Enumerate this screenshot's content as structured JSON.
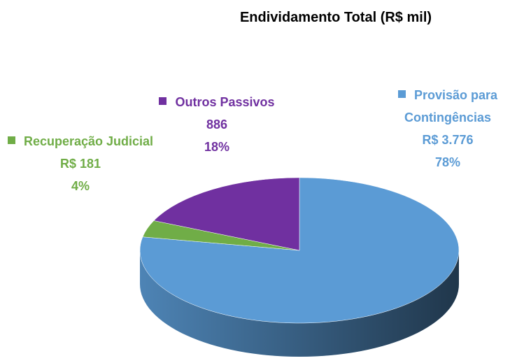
{
  "chart_data": {
    "type": "pie3d",
    "title": "Endividamento Total (R$ mil)",
    "categories": [
      "Provisão para Contingências",
      "Recuperação Judicial",
      "Outros Passivos"
    ],
    "values": [
      3776,
      181,
      886
    ],
    "value_labels": [
      "R$ 3.776",
      "R$ 181",
      "886"
    ],
    "percentages": [
      78,
      4,
      18
    ],
    "percent_labels": [
      "78%",
      "4%",
      "18%"
    ],
    "colors": [
      "#5b9bd5",
      "#70ad47",
      "#7030a0"
    ]
  }
}
